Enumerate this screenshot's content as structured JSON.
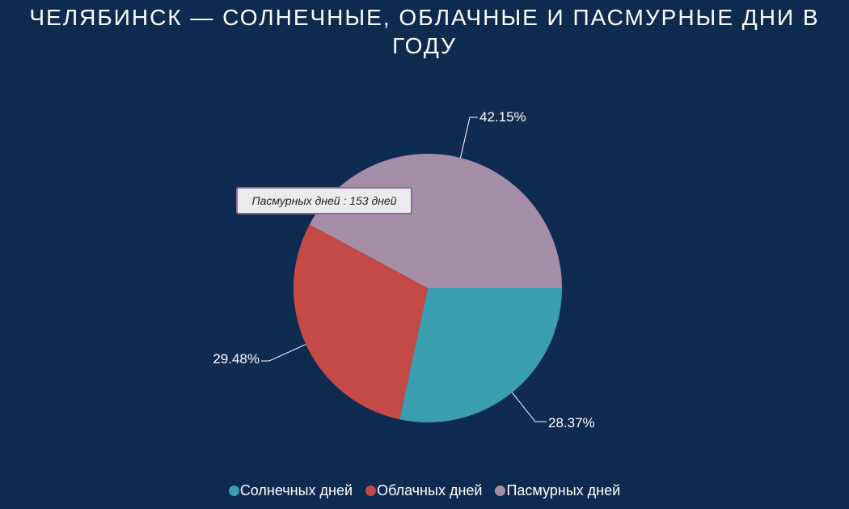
{
  "title": "ЧЕЛЯБИНСК — СОЛНЕЧНЫЕ, ОБЛАЧНЫЕ И ПАСМУРНЫЕ ДНИ В ГОДУ",
  "tooltip": "Пасмурных дней : 153 дней",
  "legend": [
    {
      "label": "Солнечных дней",
      "color": "#3a9eaf"
    },
    {
      "label": "Облачных дней",
      "color": "#c44a46"
    },
    {
      "label": "Пасмурных дней",
      "color": "#a48ea8"
    }
  ],
  "chart_data": {
    "type": "pie",
    "title": "ЧЕЛЯБИНСК — СОЛНЕЧНЫЕ, ОБЛАЧНЫЕ И ПАСМУРНЫЕ ДНИ В ГОДУ",
    "categories": [
      "Солнечных дней",
      "Облачных дней",
      "Пасмурных дней"
    ],
    "values": [
      28.37,
      29.48,
      42.15
    ],
    "labels": [
      "28.37%",
      "29.48%",
      "42.15%"
    ],
    "colors": [
      "#3a9eaf",
      "#c44a46",
      "#a48ea8"
    ],
    "legend_position": "bottom"
  }
}
